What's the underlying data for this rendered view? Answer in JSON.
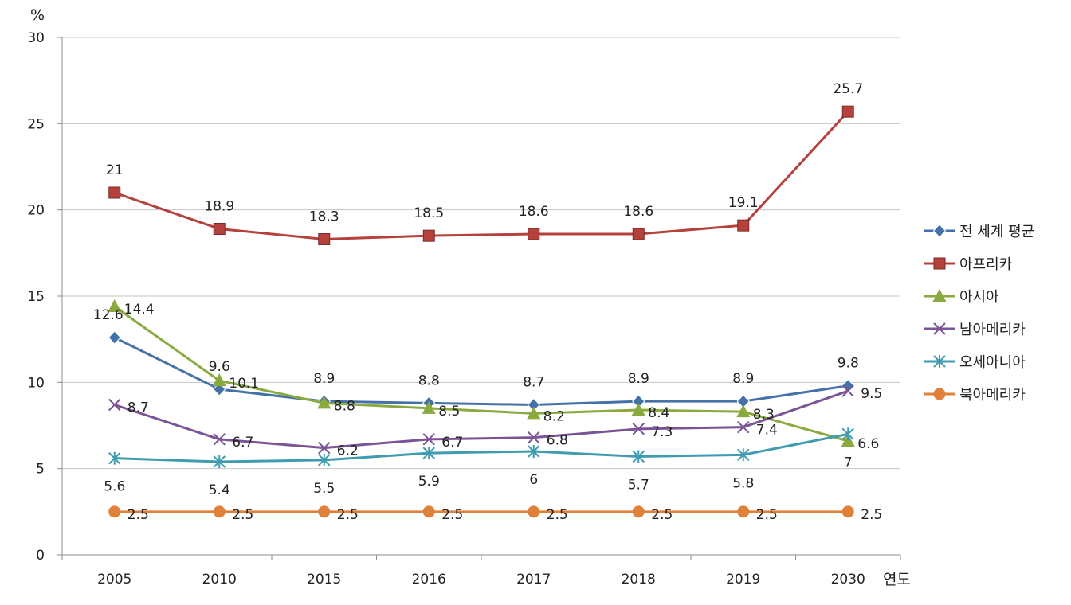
{
  "chart_data": {
    "type": "line",
    "xlabel": "연도",
    "ylabel": "%",
    "ylim": [
      0,
      30
    ],
    "yticks": [
      0,
      5,
      10,
      15,
      20,
      25,
      30
    ],
    "categories": [
      "2005",
      "2010",
      "2015",
      "2016",
      "2017",
      "2018",
      "2019",
      "2030"
    ],
    "grid": "horizontal",
    "legend": "right",
    "series": [
      {
        "name": "전 세계 평균",
        "color": "#4472A8",
        "marker": "diamond",
        "values": [
          12.6,
          9.6,
          8.9,
          8.8,
          8.7,
          8.9,
          8.9,
          9.8
        ]
      },
      {
        "name": "아프리카",
        "color": "#B5413D",
        "marker": "square",
        "values": [
          21,
          18.9,
          18.3,
          18.5,
          18.6,
          18.6,
          19.1,
          25.7
        ]
      },
      {
        "name": "아시아",
        "color": "#8AAA3F",
        "marker": "triangle",
        "values": [
          14.4,
          10.1,
          8.8,
          8.5,
          8.2,
          8.4,
          8.3,
          6.6
        ]
      },
      {
        "name": "남아메리카",
        "color": "#7A5496",
        "marker": "x",
        "values": [
          8.7,
          6.7,
          6.2,
          6.7,
          6.8,
          7.3,
          7.4,
          9.5
        ]
      },
      {
        "name": "오세아니아",
        "color": "#3E9BB0",
        "marker": "star",
        "values": [
          5.6,
          5.4,
          5.5,
          5.9,
          6,
          5.7,
          5.8,
          7
        ]
      },
      {
        "name": "북아메리카",
        "color": "#E0813A",
        "marker": "circle",
        "values": [
          2.5,
          2.5,
          2.5,
          2.5,
          2.5,
          2.5,
          2.5,
          2.5
        ]
      }
    ]
  }
}
